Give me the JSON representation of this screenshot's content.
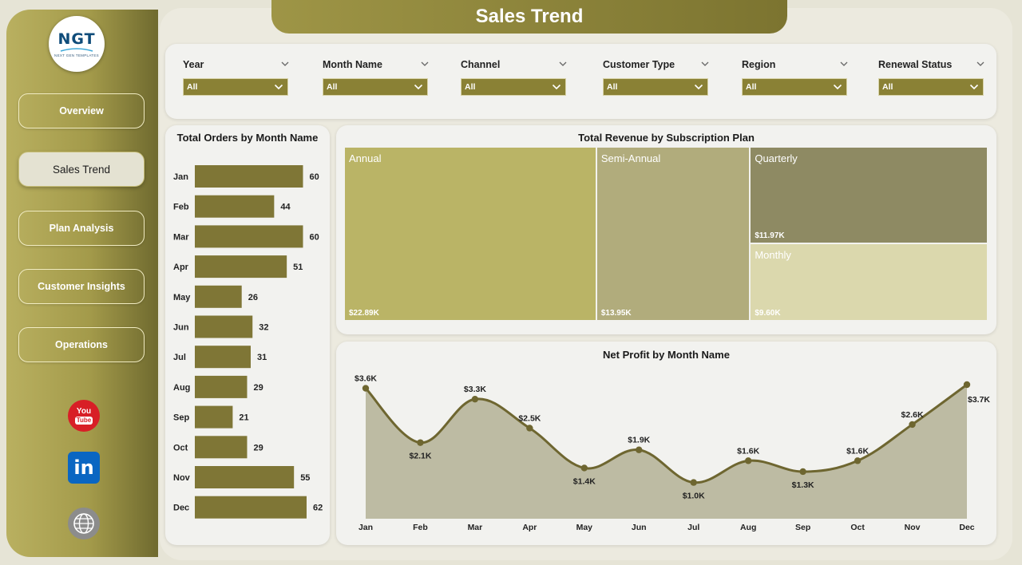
{
  "header": {
    "title": "Sales Trend"
  },
  "logo": {
    "mark": "NGT",
    "tagline": "NEXT GEN TEMPLATES"
  },
  "nav": [
    {
      "label": "Overview",
      "active": false
    },
    {
      "label": "Sales Trend",
      "active": true
    },
    {
      "label": "Plan Analysis",
      "active": false
    },
    {
      "label": "Customer Insights",
      "active": false
    },
    {
      "label": "Operations",
      "active": false
    }
  ],
  "social": [
    {
      "name": "youtube-icon",
      "text1": "You",
      "text2": "Tube",
      "color": "#d81f26"
    },
    {
      "name": "linkedin-icon",
      "text1": "in",
      "color": "#0a66c2"
    },
    {
      "name": "globe-icon",
      "text1": "www",
      "color": "#8c8c8c"
    }
  ],
  "filters": [
    {
      "label": "Year",
      "value": "All"
    },
    {
      "label": "Month Name",
      "value": "All"
    },
    {
      "label": "Channel",
      "value": "All"
    },
    {
      "label": "Customer Type",
      "value": "All"
    },
    {
      "label": "Region",
      "value": "All"
    },
    {
      "label": "Renewal Status",
      "value": "All"
    }
  ],
  "colors": {
    "bar": "#7f7636",
    "line": "#6e6630",
    "area": "#bdbba3",
    "annual": "#bab466",
    "semiannual": "#b1ac7c",
    "quarterly": "#8e8a63",
    "monthly": "#dbd8ad"
  },
  "orders_chart": {
    "title": "Total Orders by Month Name",
    "chart_data": {
      "type": "bar",
      "orientation": "horizontal",
      "categories": [
        "Jan",
        "Feb",
        "Mar",
        "Apr",
        "May",
        "Jun",
        "Jul",
        "Aug",
        "Sep",
        "Oct",
        "Nov",
        "Dec"
      ],
      "values": [
        60,
        44,
        60,
        51,
        26,
        32,
        31,
        29,
        21,
        29,
        55,
        62
      ],
      "xlim": [
        0,
        62
      ]
    }
  },
  "revenue_chart": {
    "title": "Total Revenue by Subscription Plan",
    "chart_data": {
      "type": "treemap",
      "items": [
        {
          "name": "Annual",
          "label": "$22.89K",
          "value": 22.89
        },
        {
          "name": "Semi-Annual",
          "label": "$13.95K",
          "value": 13.95
        },
        {
          "name": "Quarterly",
          "label": "$11.97K",
          "value": 11.97
        },
        {
          "name": "Monthly",
          "label": "$9.60K",
          "value": 9.6
        }
      ]
    }
  },
  "profit_chart": {
    "title": "Net Profit by Month Name",
    "chart_data": {
      "type": "area",
      "categories": [
        "Jan",
        "Feb",
        "Mar",
        "Apr",
        "May",
        "Jun",
        "Jul",
        "Aug",
        "Sep",
        "Oct",
        "Nov",
        "Dec"
      ],
      "values": [
        3.6,
        2.1,
        3.3,
        2.5,
        1.4,
        1.9,
        1.0,
        1.6,
        1.3,
        1.6,
        2.6,
        3.7
      ],
      "labels": [
        "$3.6K",
        "$2.1K",
        "$3.3K",
        "$2.5K",
        "$1.4K",
        "$1.9K",
        "$1.0K",
        "$1.6K",
        "$1.3K",
        "$1.6K",
        "$2.6K",
        "$3.7K"
      ],
      "label_pos": [
        "above",
        "below",
        "above",
        "above",
        "below",
        "above",
        "below",
        "above",
        "below",
        "above",
        "above",
        "below-right"
      ],
      "ylim": [
        0.0,
        3.7
      ]
    }
  }
}
